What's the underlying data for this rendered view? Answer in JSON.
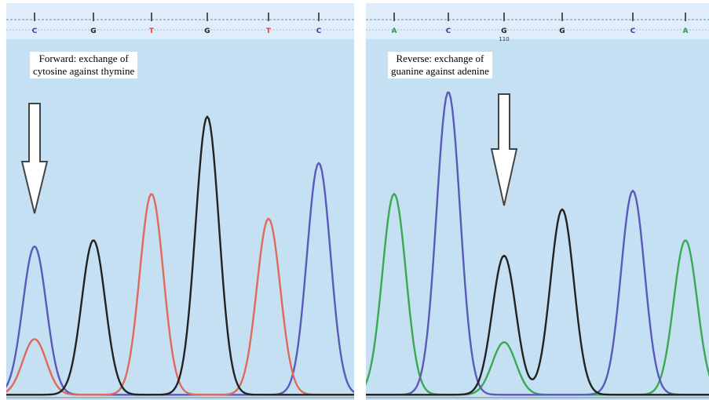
{
  "chart_data": [
    {
      "type": "line",
      "title": "",
      "annotation": {
        "line1": "Forward: exchange of",
        "line2": "cytosine against thymine"
      },
      "bases": [
        {
          "letter": "C",
          "color": "#3b3b98"
        },
        {
          "letter": "G",
          "color": "#222222"
        },
        {
          "letter": "T",
          "color": "#e04a3a"
        },
        {
          "letter": "G",
          "color": "#222222"
        },
        {
          "letter": "T",
          "color": "#e04a3a"
        },
        {
          "letter": "C",
          "color": "#3b3b98"
        }
      ],
      "arrow_at_base": 0,
      "ylim": [
        0,
        100
      ],
      "series": [
        {
          "base": "C",
          "color": "#5a5ab8",
          "peaks": [
            {
              "pos": 0,
              "height": 48
            },
            {
              "pos": 5,
              "height": 75
            }
          ]
        },
        {
          "base": "T",
          "color": "#e06a5a",
          "peaks": [
            {
              "pos": 0,
              "height": 18
            },
            {
              "pos": 2,
              "height": 65
            },
            {
              "pos": 4,
              "height": 57
            }
          ]
        },
        {
          "base": "G",
          "color": "#222222",
          "peaks": [
            {
              "pos": 1,
              "height": 50
            },
            {
              "pos": 3,
              "height": 90
            }
          ]
        }
      ]
    },
    {
      "type": "line",
      "title": "",
      "annotation": {
        "line1": "Reverse: exchange of",
        "line2": "guanine against adenine"
      },
      "position_label": "110",
      "bases": [
        {
          "letter": "A",
          "color": "#2a9d4a"
        },
        {
          "letter": "C",
          "color": "#3b3b98"
        },
        {
          "letter": "G",
          "color": "#222222"
        },
        {
          "letter": "G",
          "color": "#222222"
        },
        {
          "letter": "C",
          "color": "#3b3b98"
        },
        {
          "letter": "A",
          "color": "#2a9d4a"
        }
      ],
      "arrow_at_base": 2,
      "ylim": [
        0,
        100
      ],
      "series": [
        {
          "base": "A",
          "color": "#3aa855",
          "peaks": [
            {
              "pos": 0,
              "height": 65
            },
            {
              "pos": 2,
              "height": 17
            },
            {
              "pos": 5,
              "height": 50
            }
          ]
        },
        {
          "base": "C",
          "color": "#5a5ab8",
          "peaks": [
            {
              "pos": 1,
              "height": 98
            },
            {
              "pos": 4,
              "height": 66
            }
          ]
        },
        {
          "base": "G",
          "color": "#222222",
          "peaks": [
            {
              "pos": 2,
              "height": 45
            },
            {
              "pos": 3,
              "height": 60
            }
          ]
        }
      ]
    }
  ]
}
